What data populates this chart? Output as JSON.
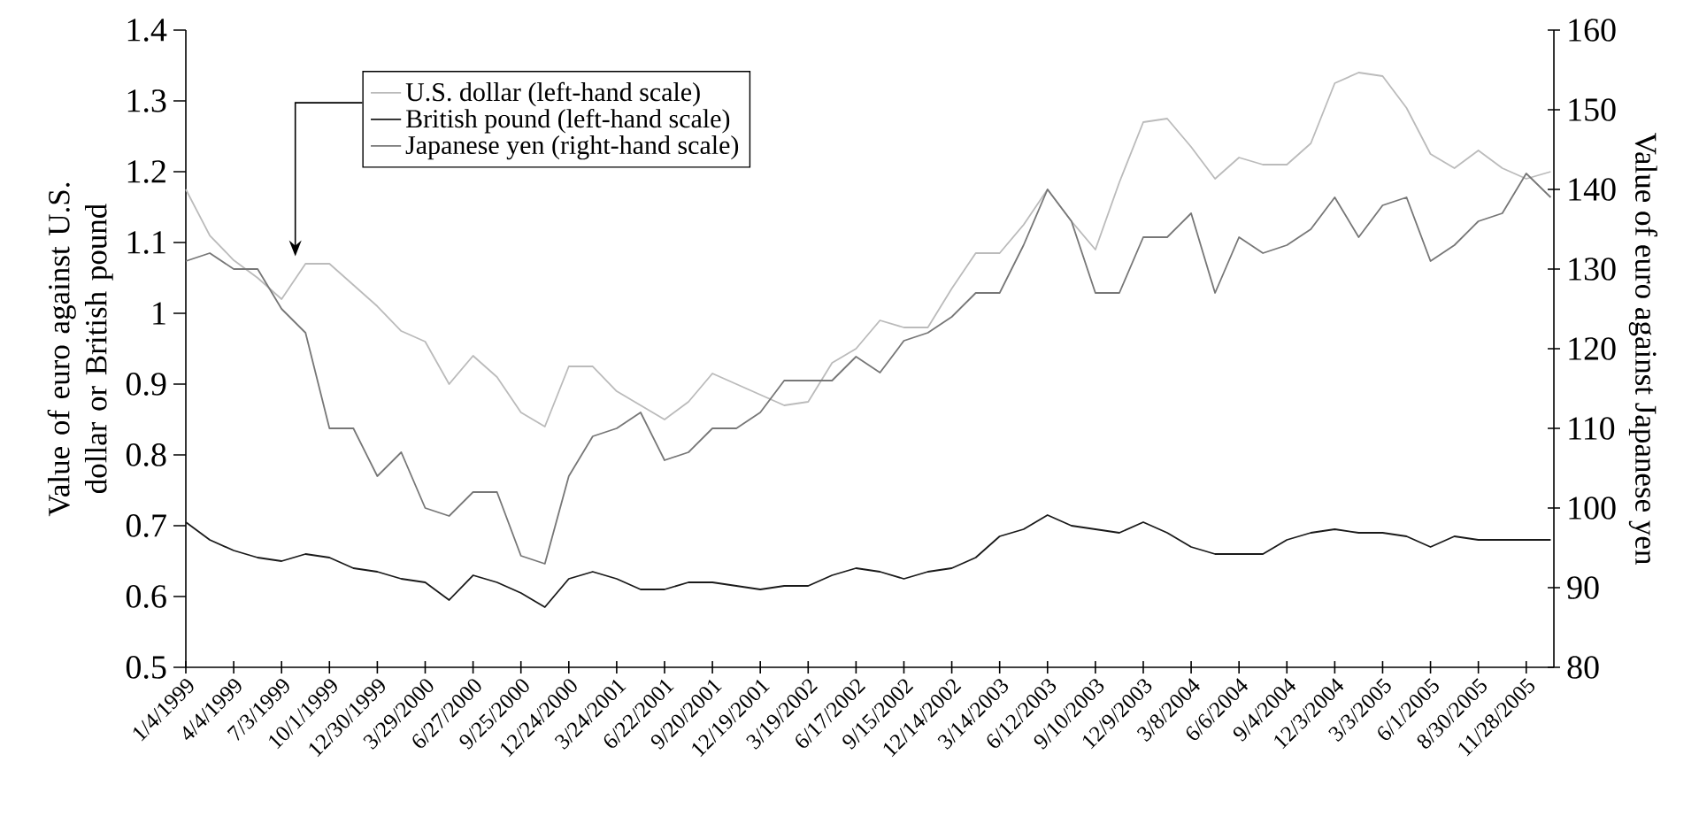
{
  "chart_data": {
    "type": "line",
    "ylabel": "Value of euro against U.S. dollar or British pound",
    "y2label": "Value of euro against Japanese yen",
    "x": [
      "1999-01-04",
      "1999-02-18",
      "1999-04-04",
      "1999-05-19",
      "1999-07-03",
      "1999-08-17",
      "1999-10-01",
      "1999-11-15",
      "1999-12-30",
      "2000-02-13",
      "2000-03-29",
      "2000-05-13",
      "2000-06-27",
      "2000-08-11",
      "2000-09-25",
      "2000-11-09",
      "2000-12-24",
      "2001-02-07",
      "2001-03-24",
      "2001-05-08",
      "2001-06-22",
      "2001-08-06",
      "2001-09-20",
      "2001-11-04",
      "2001-12-19",
      "2002-02-02",
      "2002-03-19",
      "2002-05-03",
      "2002-06-17",
      "2002-08-01",
      "2002-09-15",
      "2002-10-30",
      "2002-12-14",
      "2003-01-28",
      "2003-03-14",
      "2003-04-28",
      "2003-06-12",
      "2003-07-27",
      "2003-09-10",
      "2003-10-25",
      "2003-12-09",
      "2004-01-23",
      "2004-03-08",
      "2004-04-22",
      "2004-06-06",
      "2004-07-21",
      "2004-09-04",
      "2004-10-19",
      "2004-12-03",
      "2005-01-17",
      "2005-03-03",
      "2005-04-17",
      "2005-06-01",
      "2005-07-16",
      "2005-08-30",
      "2005-10-14",
      "2005-11-28",
      "2006-01-13"
    ],
    "series": [
      {
        "name": "U.S. dollar (left-hand scale)",
        "color": "#bbbbbb",
        "values": [
          1.175,
          1.11,
          1.075,
          1.05,
          1.02,
          1.07,
          1.07,
          1.04,
          1.01,
          0.975,
          0.96,
          0.9,
          0.94,
          0.91,
          0.86,
          0.84,
          0.925,
          0.925,
          0.89,
          0.87,
          0.85,
          0.875,
          0.915,
          0.9,
          0.885,
          0.87,
          0.875,
          0.93,
          0.95,
          0.99,
          0.98,
          0.98,
          1.035,
          1.085,
          1.085,
          1.125,
          1.175,
          1.13,
          1.09,
          1.185,
          1.27,
          1.275,
          1.235,
          1.19,
          1.22,
          1.21,
          1.21,
          1.24,
          1.325,
          1.34,
          1.335,
          1.29,
          1.225,
          1.205,
          1.23,
          1.205,
          1.19,
          1.2
        ]
      },
      {
        "name": "British pound (left-hand scale)",
        "color": "#1a1a1a",
        "values": [
          0.705,
          0.68,
          0.665,
          0.655,
          0.65,
          0.66,
          0.655,
          0.64,
          0.635,
          0.625,
          0.62,
          0.595,
          0.63,
          0.62,
          0.605,
          0.585,
          0.625,
          0.635,
          0.625,
          0.61,
          0.61,
          0.62,
          0.62,
          0.615,
          0.61,
          0.615,
          0.615,
          0.63,
          0.64,
          0.635,
          0.625,
          0.635,
          0.64,
          0.655,
          0.685,
          0.695,
          0.715,
          0.7,
          0.695,
          0.69,
          0.705,
          0.69,
          0.67,
          0.66,
          0.66,
          0.66,
          0.68,
          0.69,
          0.695,
          0.69,
          0.69,
          0.685,
          0.67,
          0.685,
          0.68,
          0.68,
          0.68,
          0.68
        ]
      },
      {
        "name": "Japanese yen (right-hand scale)",
        "color": "#777777",
        "axis": "y2",
        "values": [
          131,
          132,
          130,
          130,
          125,
          122,
          110,
          110,
          104,
          107,
          100,
          99,
          102,
          102,
          94,
          93,
          104,
          109,
          110,
          112,
          106,
          107,
          110,
          110,
          112,
          116,
          116,
          116,
          119,
          117,
          121,
          122,
          124,
          127,
          127,
          133,
          140,
          136,
          127,
          127,
          134,
          134,
          137,
          127,
          134,
          132,
          133,
          135,
          139,
          134,
          138,
          139,
          131,
          133,
          136,
          137,
          142,
          139
        ]
      }
    ],
    "xlim": [
      "1999-01-04",
      "2006-01-19"
    ],
    "xticks": [
      {
        "value": "1999-01-04",
        "label": "1/4/1999"
      },
      {
        "value": "1999-04-04",
        "label": "4/4/1999"
      },
      {
        "value": "1999-07-03",
        "label": "7/3/1999"
      },
      {
        "value": "1999-10-01",
        "label": "10/1/1999"
      },
      {
        "value": "1999-12-30",
        "label": "12/30/1999"
      },
      {
        "value": "2000-03-29",
        "label": "3/29/2000"
      },
      {
        "value": "2000-06-27",
        "label": "6/27/2000"
      },
      {
        "value": "2000-09-25",
        "label": "9/25/2000"
      },
      {
        "value": "2000-12-24",
        "label": "12/24/2000"
      },
      {
        "value": "2001-03-24",
        "label": "3/24/2001"
      },
      {
        "value": "2001-06-22",
        "label": "6/22/2001"
      },
      {
        "value": "2001-09-20",
        "label": "9/20/2001"
      },
      {
        "value": "2001-12-19",
        "label": "12/19/2001"
      },
      {
        "value": "2002-03-19",
        "label": "3/19/2002"
      },
      {
        "value": "2002-06-17",
        "label": "6/17/2002"
      },
      {
        "value": "2002-09-15",
        "label": "9/15/2002"
      },
      {
        "value": "2002-12-14",
        "label": "12/14/2002"
      },
      {
        "value": "2003-03-14",
        "label": "3/14/2003"
      },
      {
        "value": "2003-06-12",
        "label": "6/12/2003"
      },
      {
        "value": "2003-09-10",
        "label": "9/10/2003"
      },
      {
        "value": "2003-12-09",
        "label": "12/9/2003"
      },
      {
        "value": "2004-03-08",
        "label": "3/8/2004"
      },
      {
        "value": "2004-06-06",
        "label": "6/6/2004"
      },
      {
        "value": "2004-09-04",
        "label": "9/4/2004"
      },
      {
        "value": "2004-12-03",
        "label": "12/3/2004"
      },
      {
        "value": "2005-03-03",
        "label": "3/3/2005"
      },
      {
        "value": "2005-06-01",
        "label": "6/1/2005"
      },
      {
        "value": "2005-08-30",
        "label": "8/30/2005"
      },
      {
        "value": "2005-11-28",
        "label": "11/28/2005"
      }
    ],
    "ylim": [
      0.5,
      1.4
    ],
    "yticks": [
      0.5,
      0.6,
      0.7,
      0.8,
      0.9,
      1,
      1.1,
      1.2,
      1.3,
      1.4
    ],
    "y2lim": [
      80,
      160
    ],
    "y2ticks": [
      80,
      90,
      100,
      110,
      120,
      130,
      140,
      150,
      160
    ],
    "grid": false,
    "legend": "top left"
  }
}
